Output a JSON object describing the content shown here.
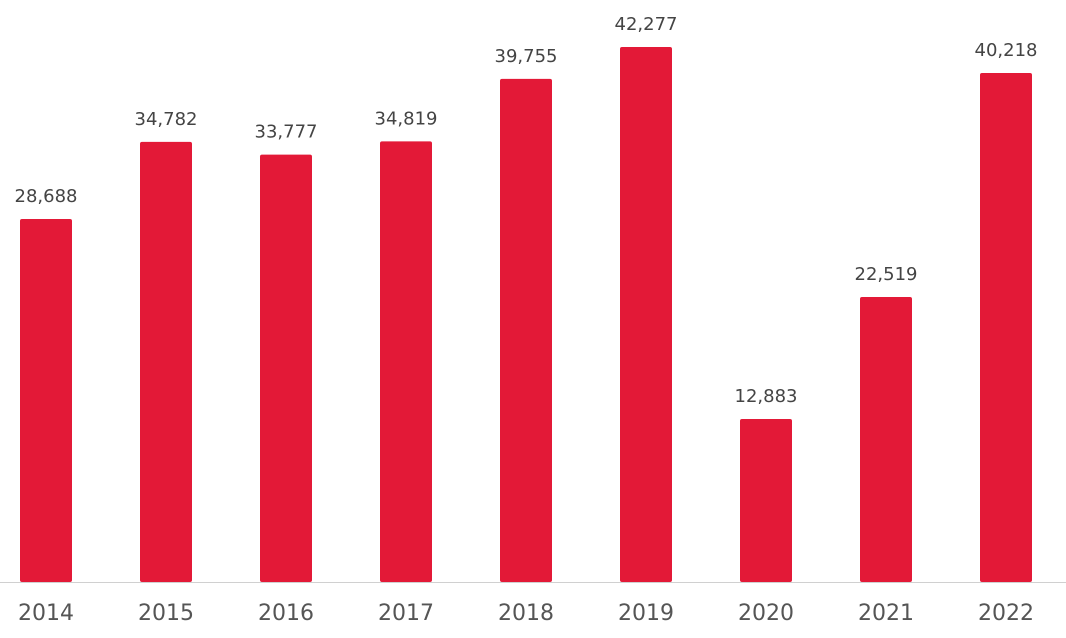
{
  "chart_data": {
    "type": "bar",
    "categories": [
      "2014",
      "2015",
      "2016",
      "2017",
      "2018",
      "2019",
      "2020",
      "2021",
      "2022"
    ],
    "values": [
      28688,
      34782,
      33777,
      34819,
      39755,
      42277,
      12883,
      22519,
      40218
    ],
    "value_labels": [
      "28,688",
      "34,782",
      "33,777",
      "34,819",
      "39,755",
      "42,277",
      "12,883",
      "22,519",
      "40,218"
    ],
    "color": "#e31937"
  }
}
